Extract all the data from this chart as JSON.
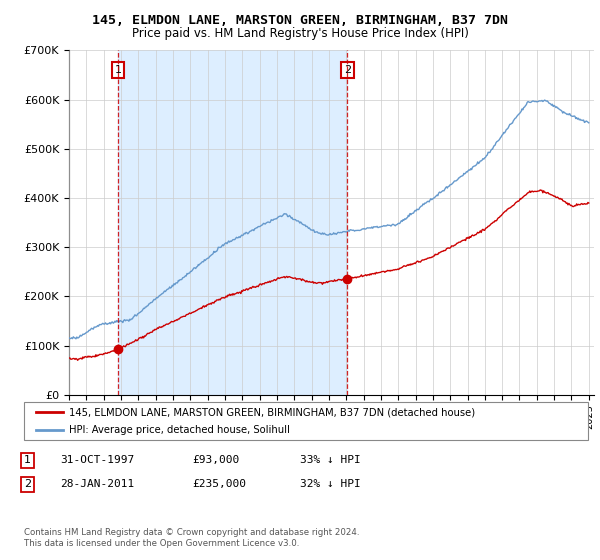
{
  "title": "145, ELMDON LANE, MARSTON GREEN, BIRMINGHAM, B37 7DN",
  "subtitle": "Price paid vs. HM Land Registry's House Price Index (HPI)",
  "red_label": "145, ELMDON LANE, MARSTON GREEN, BIRMINGHAM, B37 7DN (detached house)",
  "blue_label": "HPI: Average price, detached house, Solihull",
  "annotation1_num": "1",
  "annotation1_date": "31-OCT-1997",
  "annotation1_price": "£93,000",
  "annotation1_hpi": "33% ↓ HPI",
  "annotation2_num": "2",
  "annotation2_date": "28-JAN-2011",
  "annotation2_price": "£235,000",
  "annotation2_hpi": "32% ↓ HPI",
  "footnote": "Contains HM Land Registry data © Crown copyright and database right 2024.\nThis data is licensed under the Open Government Licence v3.0.",
  "point1_year": 1997.83,
  "point1_value": 93000,
  "point2_year": 2011.07,
  "point2_value": 235000,
  "ylim_max": 700000,
  "xlim_min": 1995,
  "xlim_max": 2025.3,
  "red_color": "#cc0000",
  "blue_color": "#6699cc",
  "shade_color": "#ddeeff",
  "bg_color": "#ffffff",
  "grid_color": "#cccccc"
}
